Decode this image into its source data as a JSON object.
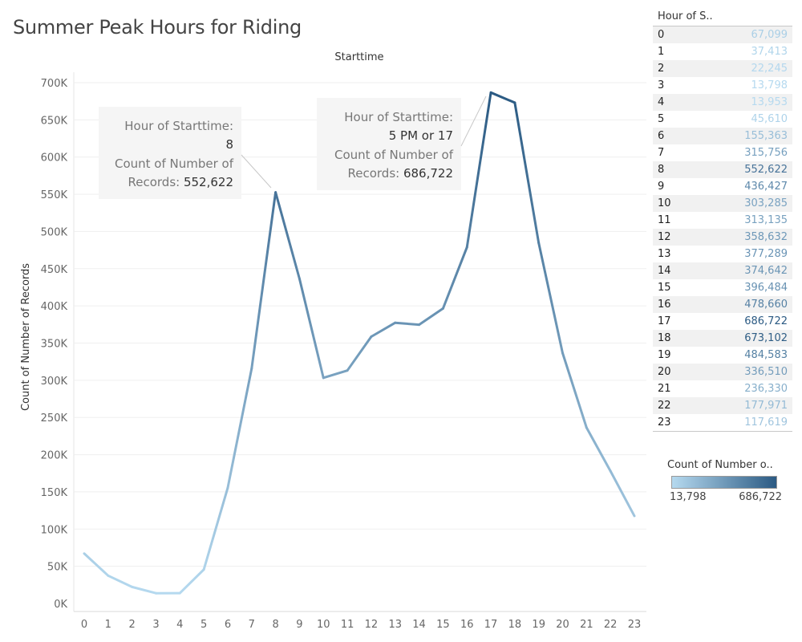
{
  "title": "Summer Peak Hours for Riding",
  "column_header": "Starttime",
  "colors": {
    "low": "#b5d9ef",
    "high": "#2b5a83"
  },
  "chart_data": {
    "type": "line",
    "x": [
      0,
      1,
      2,
      3,
      4,
      5,
      6,
      7,
      8,
      9,
      10,
      11,
      12,
      13,
      14,
      15,
      16,
      17,
      18,
      19,
      20,
      21,
      22,
      23
    ],
    "values": [
      67099,
      37413,
      22245,
      13798,
      13953,
      45610,
      155363,
      315756,
      552622,
      436427,
      303285,
      313135,
      358632,
      377289,
      374642,
      396484,
      478660,
      686722,
      673102,
      484583,
      336510,
      236330,
      177971,
      117619
    ],
    "ylabel": "Count of Number of Records",
    "ylim": [
      0,
      700000
    ],
    "yticks": [
      0,
      50000,
      100000,
      150000,
      200000,
      250000,
      300000,
      350000,
      400000,
      450000,
      500000,
      550000,
      600000,
      650000,
      700000
    ],
    "ytick_labels": [
      "0K",
      "50K",
      "100K",
      "150K",
      "200K",
      "250K",
      "300K",
      "350K",
      "400K",
      "450K",
      "500K",
      "550K",
      "600K",
      "650K",
      "700K"
    ],
    "grid": true,
    "annotations": [
      {
        "x": 8,
        "label1": "Hour of Starttime:",
        "value1": "8",
        "label2a": "Count of Number of",
        "label2b": "Records:",
        "value2": "552,622"
      },
      {
        "x": 17,
        "label1": "Hour of Starttime:",
        "value1": "5 PM or 17",
        "label2a": "Count of Number of",
        "label2b": "Records:",
        "value2": "686,722"
      }
    ]
  },
  "side_table": {
    "header": "Hour of S..",
    "rows": [
      {
        "hour": "0",
        "count": "67,099"
      },
      {
        "hour": "1",
        "count": "37,413"
      },
      {
        "hour": "2",
        "count": "22,245"
      },
      {
        "hour": "3",
        "count": "13,798"
      },
      {
        "hour": "4",
        "count": "13,953"
      },
      {
        "hour": "5",
        "count": "45,610"
      },
      {
        "hour": "6",
        "count": "155,363"
      },
      {
        "hour": "7",
        "count": "315,756"
      },
      {
        "hour": "8",
        "count": "552,622"
      },
      {
        "hour": "9",
        "count": "436,427"
      },
      {
        "hour": "10",
        "count": "303,285"
      },
      {
        "hour": "11",
        "count": "313,135"
      },
      {
        "hour": "12",
        "count": "358,632"
      },
      {
        "hour": "13",
        "count": "377,289"
      },
      {
        "hour": "14",
        "count": "374,642"
      },
      {
        "hour": "15",
        "count": "396,484"
      },
      {
        "hour": "16",
        "count": "478,660"
      },
      {
        "hour": "17",
        "count": "686,722"
      },
      {
        "hour": "18",
        "count": "673,102"
      },
      {
        "hour": "19",
        "count": "484,583"
      },
      {
        "hour": "20",
        "count": "336,510"
      },
      {
        "hour": "21",
        "count": "236,330"
      },
      {
        "hour": "22",
        "count": "177,971"
      },
      {
        "hour": "23",
        "count": "117,619"
      }
    ]
  },
  "legend": {
    "title": "Count of Number o..",
    "min_label": "13,798",
    "max_label": "686,722"
  }
}
